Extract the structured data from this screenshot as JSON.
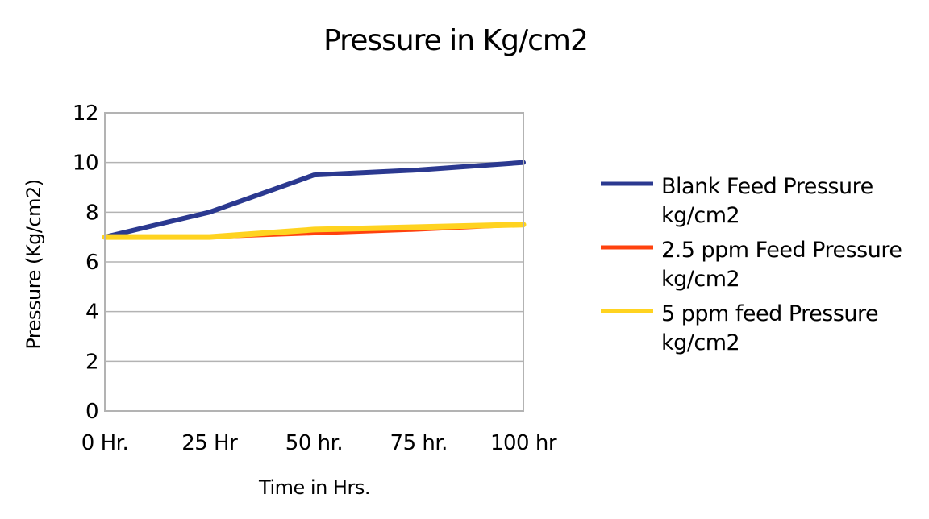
{
  "chart_data": {
    "type": "line",
    "title": "Pressure in Kg/cm2",
    "xlabel": "Time in Hrs.",
    "ylabel": "Pressure (Kg/cm2)",
    "categories": [
      "0 Hr.",
      "25 Hr",
      "50 hr.",
      "75 hr.",
      "100 hr"
    ],
    "ylim": [
      0,
      12
    ],
    "yticks": [
      0,
      2,
      4,
      6,
      8,
      10,
      12
    ],
    "grid": true,
    "legend_position": "right",
    "series": [
      {
        "name": "Blank Feed Pressure kg/cm2",
        "name_lines": [
          "Blank Feed Pressure",
          "kg/cm2"
        ],
        "color": "#2b3990",
        "values": [
          7,
          8,
          9.5,
          9.7,
          10
        ]
      },
      {
        "name": "2.5 ppm Feed Pressure kg/cm2",
        "name_lines": [
          "2.5 ppm Feed Pressure",
          "kg/cm2"
        ],
        "color": "#ff420e",
        "values": [
          7,
          7,
          7.15,
          7.3,
          7.5
        ]
      },
      {
        "name": "5 ppm feed Pressure kg/cm2",
        "name_lines": [
          "5 ppm feed Pressure",
          "kg/cm2"
        ],
        "color": "#ffd320",
        "values": [
          7,
          7,
          7.3,
          7.4,
          7.5
        ]
      }
    ]
  }
}
